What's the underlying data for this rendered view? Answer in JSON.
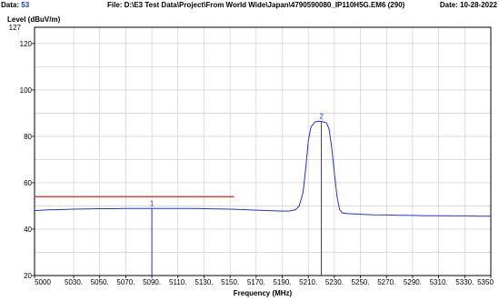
{
  "header": {
    "data_label": "Data:",
    "data_value": "53",
    "file_text": "File: D:\\E3 Test Data\\Project\\From World Wide\\Japan\\4790590080_IP110H5G.EM6  (290)",
    "date_text": "Date: 10-28-2022"
  },
  "chart_data": {
    "type": "line",
    "title": "",
    "ylabel": "Level (dBuV/m)",
    "xlabel": "Frequency (MHz)",
    "xlim": [
      5000,
      5350
    ],
    "ylim": [
      20,
      127
    ],
    "y_top_label": "127",
    "x_ticks": [
      {
        "v": 5000,
        "label": "5000"
      },
      {
        "v": 5030,
        "label": "5030."
      },
      {
        "v": 5050,
        "label": "5050."
      },
      {
        "v": 5070,
        "label": "5070."
      },
      {
        "v": 5090,
        "label": "5090."
      },
      {
        "v": 5110,
        "label": "5110."
      },
      {
        "v": 5130,
        "label": "5130."
      },
      {
        "v": 5150,
        "label": "5150."
      },
      {
        "v": 5170,
        "label": "5170."
      },
      {
        "v": 5190,
        "label": "5190."
      },
      {
        "v": 5210,
        "label": "5210."
      },
      {
        "v": 5230,
        "label": "5230."
      },
      {
        "v": 5250,
        "label": "5250."
      },
      {
        "v": 5270,
        "label": "5270."
      },
      {
        "v": 5290,
        "label": "5290."
      },
      {
        "v": 5310,
        "label": "5310."
      },
      {
        "v": 5330,
        "label": "5330."
      },
      {
        "v": 5350,
        "label": "5350"
      }
    ],
    "y_ticks": [
      {
        "v": 20,
        "label": "20"
      },
      {
        "v": 40,
        "label": "40"
      },
      {
        "v": 60,
        "label": "60"
      },
      {
        "v": 80,
        "label": "80"
      },
      {
        "v": 100,
        "label": "100"
      },
      {
        "v": 120,
        "label": "120"
      }
    ],
    "grid": true,
    "limit_line": {
      "color": "#e02020",
      "x": [
        5000,
        5153
      ],
      "y": 54
    },
    "series": [
      {
        "color": "#2233dd",
        "points": [
          [
            5000,
            48.0
          ],
          [
            5010,
            48.3
          ],
          [
            5020,
            48.4
          ],
          [
            5030,
            48.6
          ],
          [
            5040,
            48.7
          ],
          [
            5050,
            48.8
          ],
          [
            5060,
            48.8
          ],
          [
            5070,
            48.9
          ],
          [
            5080,
            48.9
          ],
          [
            5090,
            48.9
          ],
          [
            5100,
            48.9
          ],
          [
            5110,
            48.9
          ],
          [
            5120,
            48.9
          ],
          [
            5130,
            48.8
          ],
          [
            5140,
            48.7
          ],
          [
            5150,
            48.6
          ],
          [
            5160,
            48.4
          ],
          [
            5170,
            48.2
          ],
          [
            5180,
            48.0
          ],
          [
            5190,
            47.8
          ],
          [
            5195,
            47.8
          ],
          [
            5200,
            48.3
          ],
          [
            5203,
            50
          ],
          [
            5206,
            56
          ],
          [
            5208,
            66
          ],
          [
            5210,
            78
          ],
          [
            5212,
            84
          ],
          [
            5215,
            86.2
          ],
          [
            5218,
            86.5
          ],
          [
            5221,
            86.3
          ],
          [
            5224,
            85.8
          ],
          [
            5226,
            83
          ],
          [
            5228,
            75
          ],
          [
            5230,
            64
          ],
          [
            5232,
            54
          ],
          [
            5234,
            48.5
          ],
          [
            5236,
            47.0
          ],
          [
            5240,
            46.7
          ],
          [
            5250,
            46.4
          ],
          [
            5260,
            46.2
          ],
          [
            5270,
            46.1
          ],
          [
            5280,
            46.0
          ],
          [
            5290,
            45.9
          ],
          [
            5300,
            45.8
          ],
          [
            5310,
            45.8
          ],
          [
            5320,
            45.7
          ],
          [
            5330,
            45.7
          ],
          [
            5340,
            45.6
          ],
          [
            5350,
            45.6
          ]
        ]
      }
    ],
    "markers": [
      {
        "label": "1",
        "x": 5090,
        "y": 48.9,
        "color": "#2233dd"
      },
      {
        "label": "2",
        "x": 5220,
        "y": 86.5,
        "color": "#2233dd"
      }
    ]
  }
}
